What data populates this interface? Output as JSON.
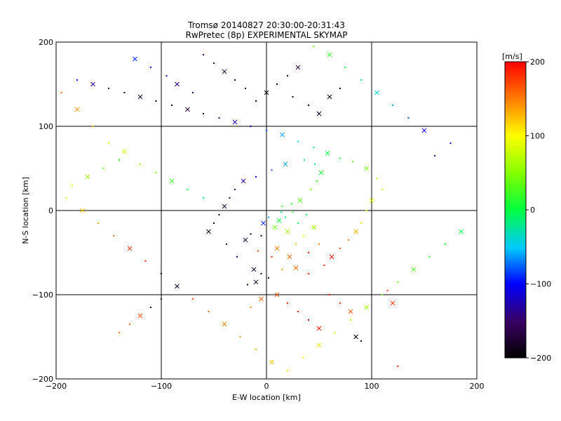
{
  "chart_data": {
    "type": "scatter",
    "title": "Tromsø 20140827 20:30:00-20:31:43",
    "subtitle": "RwPretec (8p) EXPERIMENTAL SKYMAP",
    "xlabel": "E-W location [km]",
    "ylabel": "N-S location [km]",
    "xlim": [
      -200,
      200
    ],
    "ylim": [
      -200,
      200
    ],
    "x_ticks": [
      -200,
      -100,
      0,
      100,
      200
    ],
    "y_ticks": [
      -200,
      -100,
      0,
      100,
      200
    ],
    "grid": true,
    "marker_types": [
      "cross",
      "dot"
    ],
    "colorbar": {
      "label": "[m/s]",
      "range": [
        -200,
        200
      ],
      "ticks": [
        -200,
        -100,
        0,
        100,
        200
      ],
      "colormap": "rainbow (black-purple-blue-cyan-green-yellow-red)"
    },
    "series": [
      {
        "description_of_cloud": "dense cluster",
        "points": [
          [
            12,
            -12,
            5
          ],
          [
            18,
            -8,
            -15
          ],
          [
            25,
            -2,
            10
          ],
          [
            8,
            -20,
            40
          ],
          [
            30,
            -15,
            -5
          ],
          [
            15,
            5,
            20
          ],
          [
            20,
            -25,
            60
          ],
          [
            -5,
            -30,
            -180
          ],
          [
            -15,
            -28,
            -190
          ],
          [
            -20,
            -35,
            -170
          ],
          [
            35,
            -30,
            80
          ],
          [
            28,
            -40,
            120
          ],
          [
            10,
            -45,
            150
          ],
          [
            -8,
            -48,
            170
          ],
          [
            5,
            -55,
            180
          ],
          [
            22,
            -55,
            160
          ],
          [
            40,
            -50,
            190
          ],
          [
            50,
            -40,
            150
          ],
          [
            45,
            -20,
            60
          ],
          [
            38,
            -5,
            -10
          ],
          [
            2,
            -8,
            -60
          ],
          [
            -3,
            -15,
            -90
          ],
          [
            14,
            -2,
            -20
          ],
          [
            24,
            8,
            15
          ],
          [
            32,
            12,
            30
          ],
          [
            42,
            25,
            45
          ],
          [
            48,
            35,
            20
          ],
          [
            52,
            45,
            5
          ],
          [
            46,
            55,
            -10
          ],
          [
            36,
            60,
            -40
          ],
          [
            18,
            55,
            -60
          ],
          [
            5,
            48,
            -80
          ],
          [
            -10,
            40,
            -100
          ],
          [
            -22,
            35,
            -130
          ],
          [
            -30,
            25,
            -150
          ],
          [
            -35,
            15,
            -170
          ],
          [
            -40,
            5,
            -180
          ],
          [
            -45,
            -5,
            -190
          ],
          [
            -50,
            -15,
            -200
          ],
          [
            -55,
            -25,
            -185
          ],
          [
            -38,
            -40,
            -160
          ],
          [
            -28,
            -55,
            -140
          ],
          [
            -12,
            -70,
            -180
          ],
          [
            -5,
            -75,
            -195
          ],
          [
            2,
            -80,
            -190
          ],
          [
            -10,
            -85,
            -175
          ],
          [
            -18,
            -88,
            -165
          ],
          [
            15,
            -70,
            140
          ],
          [
            28,
            -68,
            160
          ],
          [
            40,
            -75,
            180
          ],
          [
            55,
            -65,
            185
          ],
          [
            62,
            -55,
            195
          ],
          [
            70,
            -45,
            170
          ],
          [
            78,
            -35,
            150
          ],
          [
            85,
            -25,
            130
          ],
          [
            90,
            -15,
            110
          ],
          [
            95,
            0,
            100
          ],
          [
            100,
            12,
            85
          ],
          [
            110,
            25,
            70
          ],
          [
            105,
            38,
            60
          ],
          [
            95,
            50,
            45
          ],
          [
            82,
            58,
            30
          ],
          [
            70,
            62,
            15
          ],
          [
            58,
            68,
            0
          ],
          [
            45,
            75,
            -20
          ],
          [
            30,
            82,
            -40
          ],
          [
            15,
            90,
            -60
          ],
          [
            0,
            95,
            -80
          ],
          [
            -15,
            100,
            -100
          ],
          [
            -30,
            105,
            -120
          ],
          [
            -45,
            110,
            -140
          ],
          [
            -60,
            115,
            -160
          ],
          [
            -75,
            120,
            -175
          ],
          [
            -90,
            125,
            -190
          ],
          [
            -105,
            130,
            -200
          ],
          [
            -120,
            135,
            -185
          ],
          [
            -135,
            140,
            -170
          ],
          [
            -150,
            145,
            -150
          ],
          [
            -165,
            150,
            -130
          ],
          [
            -180,
            155,
            -110
          ],
          [
            -10,
            130,
            -195
          ],
          [
            0,
            140,
            -200
          ],
          [
            10,
            150,
            -190
          ],
          [
            20,
            160,
            -180
          ],
          [
            30,
            170,
            -170
          ],
          [
            -20,
            145,
            -185
          ],
          [
            -30,
            155,
            -175
          ],
          [
            -40,
            165,
            -165
          ],
          [
            -50,
            175,
            -155
          ],
          [
            -60,
            185,
            -145
          ],
          [
            60,
            135,
            -195
          ],
          [
            70,
            145,
            -185
          ],
          [
            40,
            125,
            -200
          ],
          [
            50,
            115,
            -190
          ],
          [
            25,
            135,
            -195
          ],
          [
            -70,
            140,
            -150
          ],
          [
            -85,
            150,
            -135
          ],
          [
            -95,
            160,
            -120
          ],
          [
            -110,
            170,
            -105
          ],
          [
            -125,
            180,
            -90
          ],
          [
            -140,
            60,
            20
          ],
          [
            -155,
            50,
            40
          ],
          [
            -170,
            40,
            60
          ],
          [
            -185,
            30,
            80
          ],
          [
            -190,
            15,
            100
          ],
          [
            -175,
            0,
            120
          ],
          [
            -160,
            -15,
            140
          ],
          [
            -145,
            -30,
            160
          ],
          [
            -130,
            -45,
            180
          ],
          [
            -115,
            -60,
            190
          ],
          [
            -100,
            -75,
            -190
          ],
          [
            -85,
            -90,
            -180
          ],
          [
            -70,
            -105,
            170
          ],
          [
            -55,
            -120,
            160
          ],
          [
            -40,
            -135,
            150
          ],
          [
            -25,
            -150,
            140
          ],
          [
            -10,
            -165,
            130
          ],
          [
            5,
            -180,
            120
          ],
          [
            20,
            -190,
            110
          ],
          [
            35,
            -175,
            100
          ],
          [
            50,
            -160,
            90
          ],
          [
            65,
            -145,
            80
          ],
          [
            80,
            -130,
            70
          ],
          [
            95,
            -115,
            60
          ],
          [
            110,
            -100,
            50
          ],
          [
            125,
            -85,
            40
          ],
          [
            140,
            -70,
            30
          ],
          [
            155,
            -55,
            20
          ],
          [
            170,
            -40,
            10
          ],
          [
            185,
            -25,
            0
          ],
          [
            160,
            65,
            -140
          ],
          [
            175,
            80,
            -120
          ],
          [
            150,
            95,
            -100
          ],
          [
            135,
            110,
            -80
          ],
          [
            120,
            125,
            -60
          ],
          [
            105,
            140,
            -40
          ],
          [
            90,
            155,
            -20
          ],
          [
            75,
            170,
            0
          ],
          [
            60,
            185,
            20
          ],
          [
            45,
            195,
            40
          ],
          [
            -195,
            140,
            160
          ],
          [
            -180,
            120,
            140
          ],
          [
            -165,
            100,
            120
          ],
          [
            -150,
            80,
            100
          ],
          [
            -135,
            70,
            80
          ],
          [
            -120,
            55,
            60
          ],
          [
            -105,
            45,
            40
          ],
          [
            -90,
            35,
            20
          ],
          [
            -75,
            25,
            0
          ],
          [
            -60,
            15,
            -20
          ],
          [
            10,
            -100,
            170
          ],
          [
            20,
            -110,
            180
          ],
          [
            30,
            -120,
            190
          ],
          [
            -5,
            -105,
            160
          ],
          [
            -15,
            -115,
            150
          ],
          [
            40,
            -130,
            200
          ],
          [
            50,
            -140,
            195
          ],
          [
            60,
            -100,
            185
          ],
          [
            70,
            -110,
            175
          ],
          [
            80,
            -120,
            165
          ],
          [
            -100,
            -105,
            -160
          ],
          [
            -110,
            -115,
            -170
          ],
          [
            -120,
            -125,
            170
          ],
          [
            -130,
            -135,
            160
          ],
          [
            -140,
            -145,
            150
          ],
          [
            85,
            -150,
            -200
          ],
          [
            90,
            -155,
            -195
          ],
          [
            125,
            -185,
            190
          ],
          [
            120,
            -110,
            180
          ],
          [
            115,
            -95,
            175
          ]
        ]
      }
    ]
  }
}
